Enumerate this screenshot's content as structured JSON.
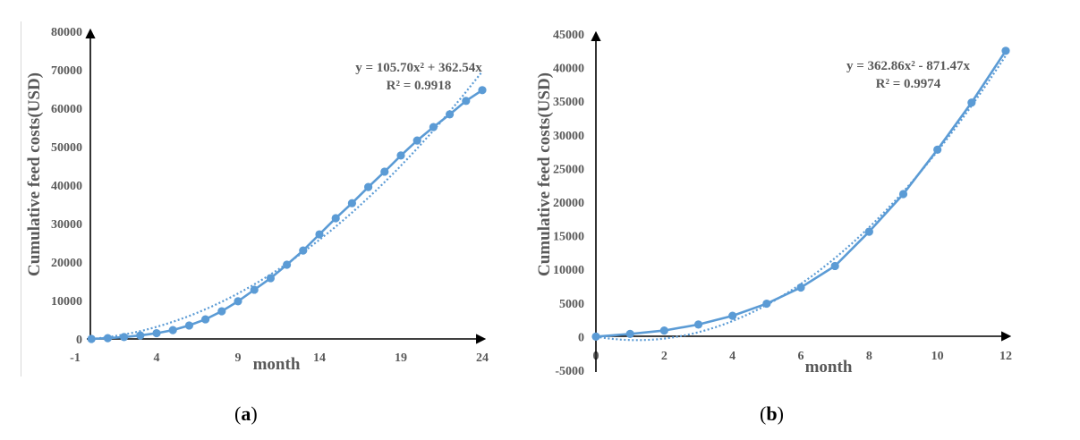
{
  "chart_data": [
    {
      "type": "line",
      "panel": "a",
      "caption": "a",
      "title": "",
      "xlabel": "month",
      "ylabel": "Cumulative feed costs(USD)",
      "xlim": [
        -1,
        24
      ],
      "ylim": [
        0,
        80000
      ],
      "x_ticks": [
        -1,
        4,
        9,
        14,
        19,
        24
      ],
      "y_ticks": [
        0,
        10000,
        20000,
        30000,
        40000,
        50000,
        60000,
        70000,
        80000
      ],
      "grid": false,
      "legend": "none",
      "color": "#5B9BD5",
      "x": [
        0,
        1,
        2,
        3,
        4,
        5,
        6,
        7,
        8,
        9,
        10,
        11,
        12,
        13,
        14,
        15,
        16,
        17,
        18,
        19,
        20,
        21,
        22,
        23,
        24
      ],
      "series": [
        {
          "name": "Cumulative feed costs",
          "values": [
            0,
            200,
            500,
            900,
            1500,
            2300,
            3500,
            5100,
            7200,
            9800,
            12800,
            15800,
            19300,
            23000,
            27200,
            31400,
            35300,
            39500,
            43500,
            47700,
            51600,
            55100,
            58400,
            61900,
            64700
          ]
        }
      ],
      "trendline": {
        "type": "polynomial",
        "a": 105.7,
        "b": 362.54,
        "equation": "y = 105.70x² + 362.54x",
        "r2": "R² = 0.9918"
      }
    },
    {
      "type": "line",
      "panel": "b",
      "caption": "b",
      "title": "",
      "xlabel": "month",
      "ylabel": "Cumulative feed costs(USD)",
      "xlim": [
        0,
        12
      ],
      "ylim": [
        -5000,
        45000
      ],
      "x_ticks": [
        0,
        2,
        4,
        6,
        8,
        10,
        12
      ],
      "y_ticks": [
        -5000,
        0,
        5000,
        10000,
        15000,
        20000,
        25000,
        30000,
        35000,
        40000,
        45000
      ],
      "grid": false,
      "legend": "none",
      "color": "#5B9BD5",
      "x": [
        0,
        1,
        2,
        3,
        4,
        5,
        6,
        7,
        8,
        9,
        10,
        11,
        12
      ],
      "series": [
        {
          "name": "Cumulative feed costs",
          "values": [
            0,
            400,
            900,
            1800,
            3100,
            4900,
            7300,
            10500,
            15600,
            21200,
            27800,
            34800,
            42500
          ]
        }
      ],
      "trendline": {
        "type": "polynomial",
        "a": 362.86,
        "b": -871.47,
        "equation": "y = 362.86x² - 871.47x",
        "r2": "R² = 0.9974"
      }
    }
  ],
  "captions": {
    "a_open": "(",
    "a_letter": "a",
    "a_close": ")",
    "b_open": "(",
    "b_letter": "b",
    "b_close": ")"
  }
}
